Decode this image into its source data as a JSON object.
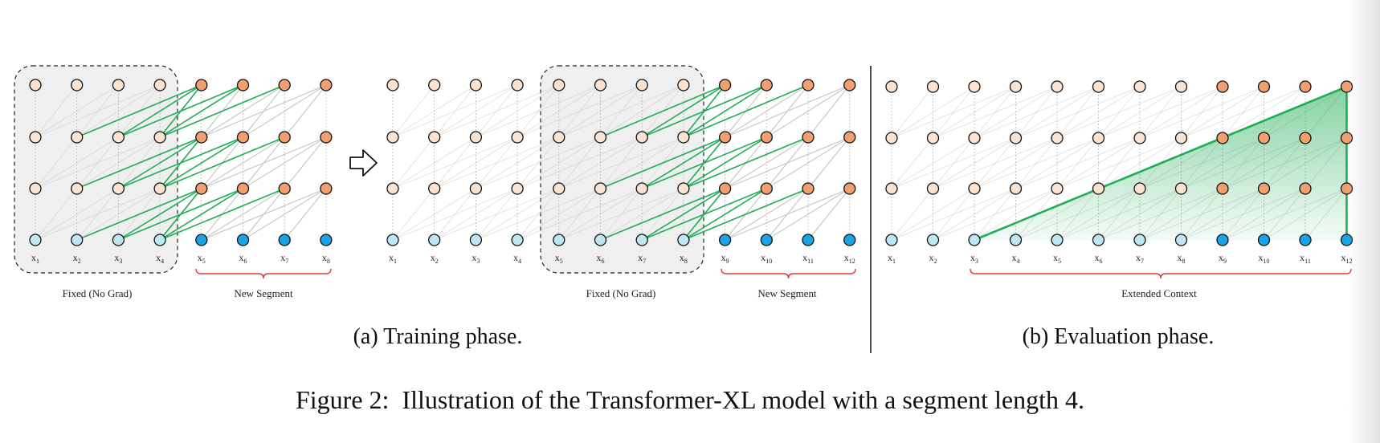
{
  "training": {
    "caption": "(a) Training phase.",
    "panel1": {
      "fixed_label": "Fixed (No Grad)",
      "new_label": "New Segment",
      "tokens": [
        "1",
        "2",
        "3",
        "4",
        "5",
        "6",
        "7",
        "8"
      ]
    },
    "panel2": {
      "fixed_label": "Fixed (No Grad)",
      "new_label": "New Segment",
      "tokens": [
        "1",
        "2",
        "3",
        "4",
        "5",
        "6",
        "7",
        "8",
        "9",
        "10",
        "11",
        "12"
      ]
    }
  },
  "evaluation": {
    "caption": "(b) Evaluation phase.",
    "extended_label": "Extended Context",
    "tokens": [
      "1",
      "2",
      "3",
      "4",
      "5",
      "6",
      "7",
      "8",
      "9",
      "10",
      "11",
      "12"
    ]
  },
  "figure_caption": {
    "prefix": "Figure 2:",
    "text": "Illustration of the Transformer-XL model with a segment length 4."
  },
  "colors": {
    "hidden_light": "#fbe3d0",
    "hidden_dark": "#f0a070",
    "input_light": "#c7ecf8",
    "input_dark": "#1aa4e6",
    "green": "#21ad55",
    "gray_line": "#c8c8c8",
    "brace": "#d9383a",
    "fixed_box": "#efefef"
  }
}
